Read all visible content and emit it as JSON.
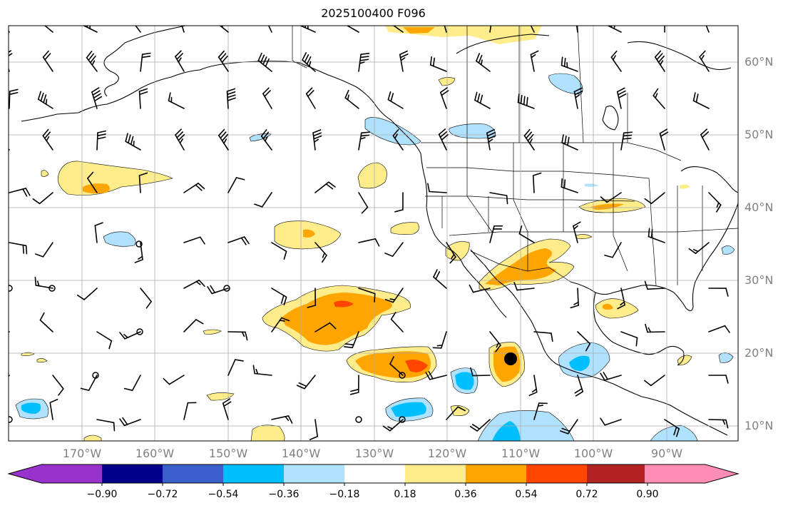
{
  "title": "2025100400 F096",
  "lat_labels": [
    "60°N",
    "50°N",
    "40°N",
    "30°N",
    "20°N",
    "10°N"
  ],
  "lon_labels": [
    "170°W",
    "160°W",
    "150°W",
    "140°W",
    "130°W",
    "120°W",
    "110°W",
    "100°W",
    "90°W"
  ],
  "colorbar": {
    "ticks": [
      "−0.90",
      "−0.72",
      "−0.54",
      "−0.36",
      "−0.18",
      "0.18",
      "0.36",
      "0.54",
      "0.72",
      "0.90"
    ],
    "colors": [
      "#9932cc",
      "#00008b",
      "#3a5fcd",
      "#00bfff",
      "#b0e2ff",
      "#ffffff",
      "#ffec8b",
      "#ffa500",
      "#ff4500",
      "#b22222",
      "#ff8cb4"
    ]
  },
  "colors": {
    "light_yellow": "#ffec8b",
    "orange": "#ffa500",
    "red_orange": "#ff4500",
    "light_blue": "#b0e2ff",
    "deep_sky_blue": "#00bfff",
    "grid": "#aaaaaa"
  }
}
